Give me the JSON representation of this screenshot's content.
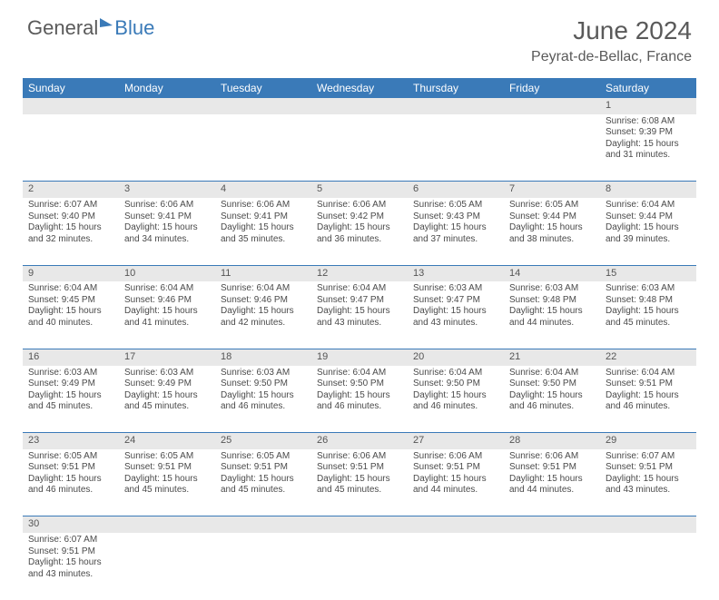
{
  "brand": {
    "part1": "General",
    "part2": "Blue"
  },
  "title": "June 2024",
  "location": "Peyrat-de-Bellac, France",
  "colors": {
    "header_bg": "#3a7ab8",
    "header_text": "#ffffff",
    "daynum_bg": "#e8e8e8",
    "text": "#4a4a4a",
    "rule": "#3a7ab8"
  },
  "day_labels": [
    "Sunday",
    "Monday",
    "Tuesday",
    "Wednesday",
    "Thursday",
    "Friday",
    "Saturday"
  ],
  "weeks": [
    [
      null,
      null,
      null,
      null,
      null,
      null,
      {
        "n": "1",
        "sr": "Sunrise: 6:08 AM",
        "ss": "Sunset: 9:39 PM",
        "d1": "Daylight: 15 hours",
        "d2": "and 31 minutes."
      }
    ],
    [
      {
        "n": "2",
        "sr": "Sunrise: 6:07 AM",
        "ss": "Sunset: 9:40 PM",
        "d1": "Daylight: 15 hours",
        "d2": "and 32 minutes."
      },
      {
        "n": "3",
        "sr": "Sunrise: 6:06 AM",
        "ss": "Sunset: 9:41 PM",
        "d1": "Daylight: 15 hours",
        "d2": "and 34 minutes."
      },
      {
        "n": "4",
        "sr": "Sunrise: 6:06 AM",
        "ss": "Sunset: 9:41 PM",
        "d1": "Daylight: 15 hours",
        "d2": "and 35 minutes."
      },
      {
        "n": "5",
        "sr": "Sunrise: 6:06 AM",
        "ss": "Sunset: 9:42 PM",
        "d1": "Daylight: 15 hours",
        "d2": "and 36 minutes."
      },
      {
        "n": "6",
        "sr": "Sunrise: 6:05 AM",
        "ss": "Sunset: 9:43 PM",
        "d1": "Daylight: 15 hours",
        "d2": "and 37 minutes."
      },
      {
        "n": "7",
        "sr": "Sunrise: 6:05 AM",
        "ss": "Sunset: 9:44 PM",
        "d1": "Daylight: 15 hours",
        "d2": "and 38 minutes."
      },
      {
        "n": "8",
        "sr": "Sunrise: 6:04 AM",
        "ss": "Sunset: 9:44 PM",
        "d1": "Daylight: 15 hours",
        "d2": "and 39 minutes."
      }
    ],
    [
      {
        "n": "9",
        "sr": "Sunrise: 6:04 AM",
        "ss": "Sunset: 9:45 PM",
        "d1": "Daylight: 15 hours",
        "d2": "and 40 minutes."
      },
      {
        "n": "10",
        "sr": "Sunrise: 6:04 AM",
        "ss": "Sunset: 9:46 PM",
        "d1": "Daylight: 15 hours",
        "d2": "and 41 minutes."
      },
      {
        "n": "11",
        "sr": "Sunrise: 6:04 AM",
        "ss": "Sunset: 9:46 PM",
        "d1": "Daylight: 15 hours",
        "d2": "and 42 minutes."
      },
      {
        "n": "12",
        "sr": "Sunrise: 6:04 AM",
        "ss": "Sunset: 9:47 PM",
        "d1": "Daylight: 15 hours",
        "d2": "and 43 minutes."
      },
      {
        "n": "13",
        "sr": "Sunrise: 6:03 AM",
        "ss": "Sunset: 9:47 PM",
        "d1": "Daylight: 15 hours",
        "d2": "and 43 minutes."
      },
      {
        "n": "14",
        "sr": "Sunrise: 6:03 AM",
        "ss": "Sunset: 9:48 PM",
        "d1": "Daylight: 15 hours",
        "d2": "and 44 minutes."
      },
      {
        "n": "15",
        "sr": "Sunrise: 6:03 AM",
        "ss": "Sunset: 9:48 PM",
        "d1": "Daylight: 15 hours",
        "d2": "and 45 minutes."
      }
    ],
    [
      {
        "n": "16",
        "sr": "Sunrise: 6:03 AM",
        "ss": "Sunset: 9:49 PM",
        "d1": "Daylight: 15 hours",
        "d2": "and 45 minutes."
      },
      {
        "n": "17",
        "sr": "Sunrise: 6:03 AM",
        "ss": "Sunset: 9:49 PM",
        "d1": "Daylight: 15 hours",
        "d2": "and 45 minutes."
      },
      {
        "n": "18",
        "sr": "Sunrise: 6:03 AM",
        "ss": "Sunset: 9:50 PM",
        "d1": "Daylight: 15 hours",
        "d2": "and 46 minutes."
      },
      {
        "n": "19",
        "sr": "Sunrise: 6:04 AM",
        "ss": "Sunset: 9:50 PM",
        "d1": "Daylight: 15 hours",
        "d2": "and 46 minutes."
      },
      {
        "n": "20",
        "sr": "Sunrise: 6:04 AM",
        "ss": "Sunset: 9:50 PM",
        "d1": "Daylight: 15 hours",
        "d2": "and 46 minutes."
      },
      {
        "n": "21",
        "sr": "Sunrise: 6:04 AM",
        "ss": "Sunset: 9:50 PM",
        "d1": "Daylight: 15 hours",
        "d2": "and 46 minutes."
      },
      {
        "n": "22",
        "sr": "Sunrise: 6:04 AM",
        "ss": "Sunset: 9:51 PM",
        "d1": "Daylight: 15 hours",
        "d2": "and 46 minutes."
      }
    ],
    [
      {
        "n": "23",
        "sr": "Sunrise: 6:05 AM",
        "ss": "Sunset: 9:51 PM",
        "d1": "Daylight: 15 hours",
        "d2": "and 46 minutes."
      },
      {
        "n": "24",
        "sr": "Sunrise: 6:05 AM",
        "ss": "Sunset: 9:51 PM",
        "d1": "Daylight: 15 hours",
        "d2": "and 45 minutes."
      },
      {
        "n": "25",
        "sr": "Sunrise: 6:05 AM",
        "ss": "Sunset: 9:51 PM",
        "d1": "Daylight: 15 hours",
        "d2": "and 45 minutes."
      },
      {
        "n": "26",
        "sr": "Sunrise: 6:06 AM",
        "ss": "Sunset: 9:51 PM",
        "d1": "Daylight: 15 hours",
        "d2": "and 45 minutes."
      },
      {
        "n": "27",
        "sr": "Sunrise: 6:06 AM",
        "ss": "Sunset: 9:51 PM",
        "d1": "Daylight: 15 hours",
        "d2": "and 44 minutes."
      },
      {
        "n": "28",
        "sr": "Sunrise: 6:06 AM",
        "ss": "Sunset: 9:51 PM",
        "d1": "Daylight: 15 hours",
        "d2": "and 44 minutes."
      },
      {
        "n": "29",
        "sr": "Sunrise: 6:07 AM",
        "ss": "Sunset: 9:51 PM",
        "d1": "Daylight: 15 hours",
        "d2": "and 43 minutes."
      }
    ],
    [
      {
        "n": "30",
        "sr": "Sunrise: 6:07 AM",
        "ss": "Sunset: 9:51 PM",
        "d1": "Daylight: 15 hours",
        "d2": "and 43 minutes."
      },
      null,
      null,
      null,
      null,
      null,
      null
    ]
  ]
}
